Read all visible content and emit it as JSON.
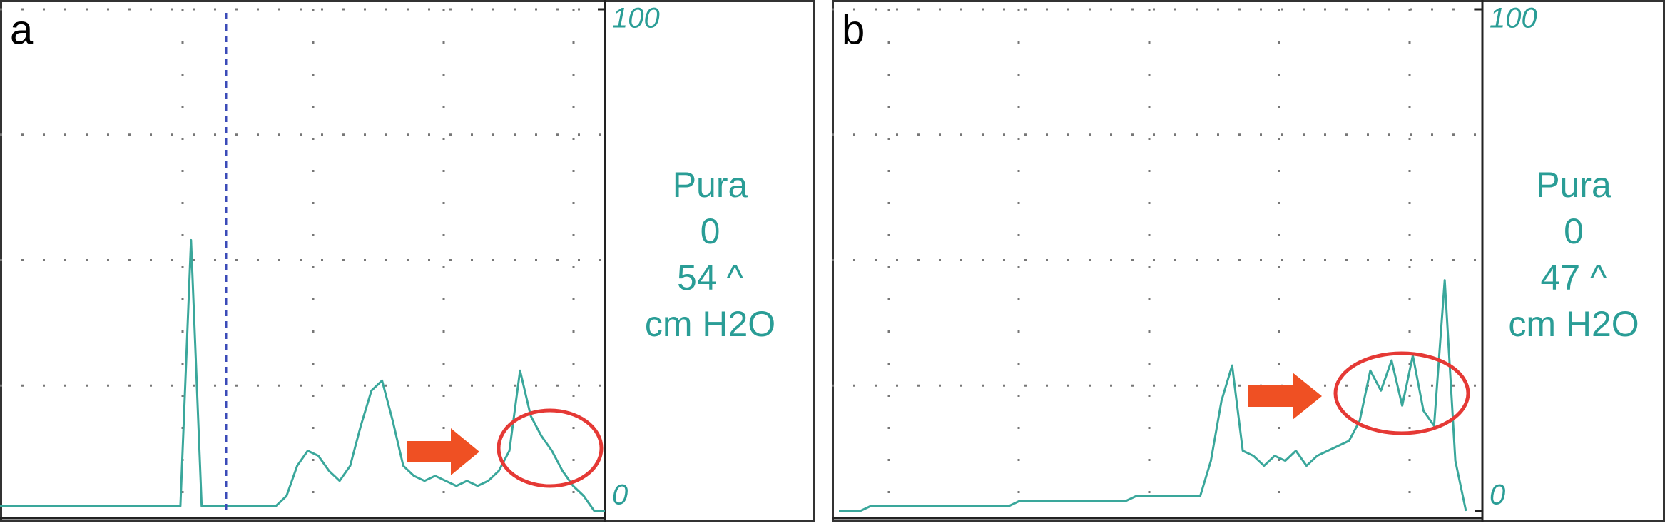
{
  "chart_data": [
    {
      "type": "line",
      "title": "a",
      "annotations": [
        "Pura",
        "0",
        "54 ^",
        "cm H2O"
      ],
      "ylim": [
        0,
        100
      ],
      "yticks": [
        0,
        100
      ],
      "grid": true,
      "series": [
        {
          "name": null,
          "color": "#3aa79b",
          "values": [
            1,
            1,
            1,
            1,
            1,
            1,
            1,
            1,
            1,
            1,
            1,
            1,
            1,
            1,
            1,
            1,
            1,
            1,
            54,
            1,
            1,
            1,
            1,
            1,
            1,
            1,
            1,
            3,
            9,
            12,
            11,
            8,
            6,
            9,
            17,
            24,
            26,
            18,
            9,
            7,
            6,
            7,
            6,
            5,
            6,
            5,
            6,
            8,
            12,
            28,
            19,
            15,
            12,
            8,
            5,
            3,
            0,
            0
          ]
        }
      ]
    },
    {
      "type": "line",
      "title": "b",
      "annotations": [
        "Pura",
        "0",
        "47 ^",
        "cm H2O"
      ],
      "ylim": [
        0,
        100
      ],
      "yticks": [
        0,
        100
      ],
      "grid": true,
      "series": [
        {
          "name": null,
          "color": "#3aa79b",
          "values": [
            0,
            0,
            0,
            1,
            1,
            1,
            1,
            1,
            1,
            1,
            1,
            1,
            1,
            1,
            1,
            1,
            1,
            2,
            2,
            2,
            2,
            2,
            2,
            2,
            2,
            2,
            2,
            2,
            3,
            3,
            3,
            3,
            3,
            3,
            3,
            10,
            22,
            29,
            12,
            11,
            9,
            11,
            10,
            12,
            9,
            11,
            12,
            13,
            14,
            18,
            28,
            24,
            30,
            21,
            31,
            20,
            17,
            46,
            10,
            0
          ]
        }
      ]
    }
  ]
}
